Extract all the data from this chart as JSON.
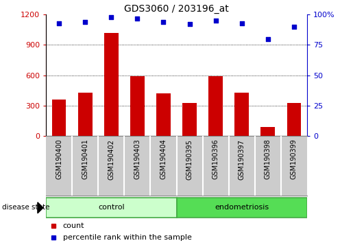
{
  "title": "GDS3060 / 203196_at",
  "samples": [
    "GSM190400",
    "GSM190401",
    "GSM190402",
    "GSM190403",
    "GSM190404",
    "GSM190395",
    "GSM190396",
    "GSM190397",
    "GSM190398",
    "GSM190399"
  ],
  "counts": [
    360,
    430,
    1020,
    590,
    420,
    330,
    590,
    430,
    90,
    330
  ],
  "percentiles": [
    93,
    94,
    98,
    97,
    94,
    92,
    95,
    93,
    80,
    90
  ],
  "groups": [
    {
      "label": "control",
      "start": 0,
      "end": 4,
      "color": "#ccffcc",
      "edge_color": "#44aa44"
    },
    {
      "label": "endometriosis",
      "start": 5,
      "end": 9,
      "color": "#55dd55",
      "edge_color": "#44aa44"
    }
  ],
  "bar_color": "#cc0000",
  "dot_color": "#0000cc",
  "left_ylim": [
    0,
    1200
  ],
  "right_ylim": [
    0,
    100
  ],
  "left_yticks": [
    0,
    300,
    600,
    900,
    1200
  ],
  "right_yticks": [
    0,
    25,
    50,
    75,
    100
  ],
  "right_yticklabels": [
    "0",
    "25",
    "50",
    "75",
    "100%"
  ],
  "grid_values": [
    300,
    600,
    900
  ],
  "background_color": "#ffffff",
  "tick_area_color": "#cccccc",
  "tick_divider_color": "#ffffff",
  "legend_count_label": "count",
  "legend_percentile_label": "percentile rank within the sample",
  "disease_state_label": "disease state"
}
